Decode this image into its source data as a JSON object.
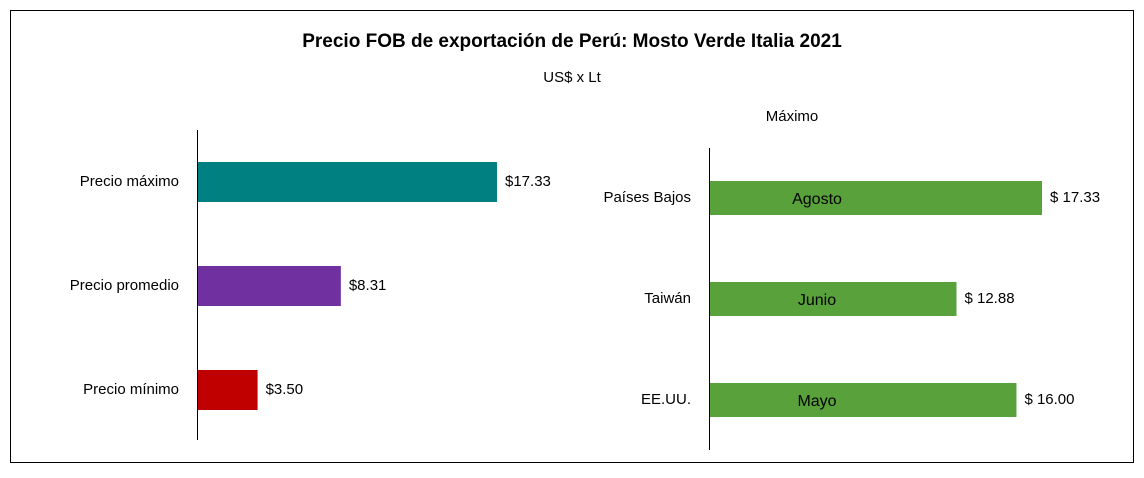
{
  "title": "Precio FOB de exportación de Perú: Mosto Verde Italia 2021",
  "subtitle": "US$ x Lt",
  "chart_data": [
    {
      "type": "hbar",
      "categories": [
        "Precio máximo",
        "Precio promedio",
        "Precio mínimo"
      ],
      "values": [
        17.33,
        8.31,
        3.5
      ],
      "value_labels": [
        "$17.33",
        "$8.31",
        "$3.50"
      ],
      "colors": [
        "#008080",
        "#7030a0",
        "#c00000"
      ]
    },
    {
      "type": "hbar",
      "title": "Máximo",
      "categories": [
        "Países Bajos",
        "Taiwán",
        "EE.UU."
      ],
      "values": [
        17.33,
        12.88,
        16.0
      ],
      "value_labels": [
        "$ 17.33",
        "$ 12.88",
        "$ 16.00"
      ],
      "annotations": [
        "Agosto",
        "Junio",
        "Mayo"
      ],
      "color": "#58a13b"
    }
  ]
}
